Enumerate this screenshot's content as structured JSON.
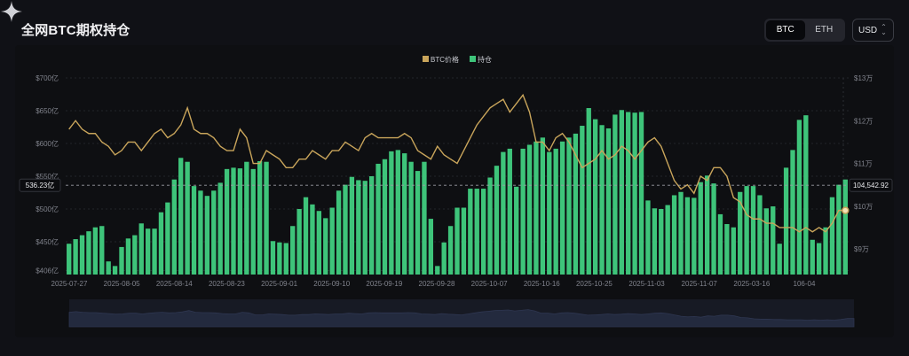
{
  "header": {
    "title": "全网BTC期权持仓",
    "asset_options": [
      "BTC",
      "ETH"
    ],
    "asset_selected": "BTC",
    "currency": "USD"
  },
  "chart_data": {
    "type": "bar",
    "title": "全网BTC期权持仓",
    "legend_position": "top-center",
    "grid": true,
    "series": [
      {
        "name": "持仓",
        "type": "bar",
        "axis": "left",
        "unit": "亿",
        "color": "#3ec47a",
        "values": [
          447,
          454,
          460,
          466,
          472,
          474,
          420,
          413,
          442,
          455,
          460,
          478,
          470,
          470,
          495,
          510,
          545,
          578,
          572,
          535,
          528,
          520,
          528,
          540,
          561,
          563,
          562,
          572,
          561,
          573,
          572,
          451,
          449,
          448,
          474,
          500,
          518,
          507,
          497,
          486,
          502,
          528,
          537,
          549,
          544,
          543,
          550,
          569,
          576,
          588,
          590,
          585,
          572,
          558,
          572,
          485,
          413,
          449,
          474,
          502,
          502,
          531,
          531,
          531,
          548,
          566,
          587,
          592,
          534,
          592,
          598,
          603,
          609,
          587,
          592,
          603,
          609,
          615,
          627,
          654,
          637,
          628,
          623,
          644,
          651,
          648,
          647,
          648,
          513,
          501,
          500,
          506,
          521,
          526,
          518,
          517,
          541,
          551,
          539,
          492,
          477,
          472,
          526,
          535,
          535,
          521,
          501,
          504,
          447,
          563,
          590,
          636,
          643,
          453,
          448,
          472,
          518,
          537,
          545
        ]
      },
      {
        "name": "BTC价格",
        "type": "line",
        "axis": "right",
        "unit": "万",
        "color": "#c9a55b",
        "values": [
          11.8,
          12.0,
          11.8,
          11.7,
          11.7,
          11.5,
          11.4,
          11.2,
          11.3,
          11.5,
          11.5,
          11.3,
          11.5,
          11.7,
          11.8,
          11.6,
          11.7,
          11.9,
          12.3,
          11.8,
          11.7,
          11.7,
          11.6,
          11.4,
          11.3,
          11.3,
          11.8,
          11.6,
          11.0,
          11.0,
          11.3,
          11.2,
          11.1,
          10.9,
          10.9,
          11.1,
          11.1,
          11.3,
          11.2,
          11.1,
          11.3,
          11.3,
          11.5,
          11.4,
          11.3,
          11.6,
          11.7,
          11.6,
          11.6,
          11.6,
          11.6,
          11.7,
          11.6,
          11.3,
          11.2,
          11.1,
          11.4,
          11.2,
          11.1,
          11.0,
          11.3,
          11.6,
          11.9,
          12.1,
          12.3,
          12.4,
          12.5,
          12.2,
          12.4,
          12.6,
          12.2,
          11.5,
          11.5,
          11.3,
          11.6,
          11.7,
          11.5,
          11.2,
          10.9,
          11.0,
          11.1,
          11.3,
          11.1,
          11.2,
          11.4,
          11.3,
          11.1,
          11.3,
          11.5,
          11.6,
          11.4,
          11.0,
          10.6,
          10.4,
          10.5,
          10.3,
          10.7,
          10.6,
          10.9,
          10.9,
          10.7,
          10.2,
          10.1,
          9.8,
          9.7,
          9.7,
          9.6,
          9.6,
          9.5,
          9.5,
          9.5,
          9.4,
          9.5,
          9.4,
          9.5,
          9.4,
          9.6,
          9.9,
          9.9
        ]
      }
    ],
    "x_tick_labels": [
      "2025-07-27",
      "2025-08-05",
      "2025-08-14",
      "2025-08-23",
      "2025-09-01",
      "2025-09-10",
      "2025-09-19",
      "2025-09-28",
      "2025-10-07",
      "2025-10-16",
      "2025-10-25",
      "2025-11-03",
      "2025-11-07",
      "2025-03-16",
      "106-04"
    ],
    "y_left": {
      "min": 400,
      "max": 700,
      "ticks": [
        "$406亿",
        "$450亿",
        "$500亿",
        "$550亿",
        "$600亿",
        "$650亿",
        "$700亿"
      ],
      "tick_values": [
        406,
        450,
        500,
        550,
        600,
        650,
        700
      ]
    },
    "y_right": {
      "min": 8.4,
      "max": 13.0,
      "ticks": [
        "$9万",
        "$10万",
        "$11万",
        "$12万",
        "$13万"
      ],
      "tick_values": [
        9,
        10,
        11,
        12,
        13
      ]
    },
    "crosshair": {
      "left_label": "536.23亿",
      "right_label": "104,542.92",
      "value": 536.23
    }
  }
}
